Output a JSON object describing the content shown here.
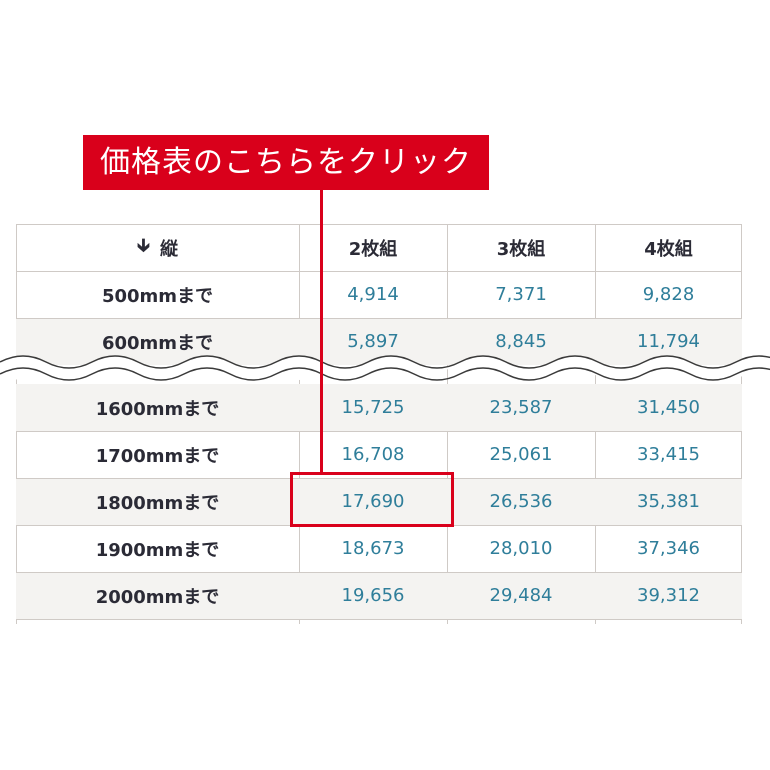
{
  "callout": {
    "label": "価格表のこちらをクリック"
  },
  "table": {
    "header": {
      "height_label": "縦",
      "col1": "2枚組",
      "col2": "3枚組",
      "col3": "4枚組"
    },
    "rows": [
      {
        "size": "500mmまで",
        "p2": "4,914",
        "p3": "7,371",
        "p4": "9,828"
      },
      {
        "size": "600mmまで",
        "p2": "5,897",
        "p3": "8,845",
        "p4": "11,794"
      },
      {
        "size": "1600mmまで",
        "p2": "15,725",
        "p3": "23,587",
        "p4": "31,450"
      },
      {
        "size": "1700mmまで",
        "p2": "16,708",
        "p3": "25,061",
        "p4": "33,415"
      },
      {
        "size": "1800mmまで",
        "p2": "17,690",
        "p3": "26,536",
        "p4": "35,381"
      },
      {
        "size": "1900mmまで",
        "p2": "18,673",
        "p3": "28,010",
        "p4": "37,346"
      },
      {
        "size": "2000mmまで",
        "p2": "19,656",
        "p3": "29,484",
        "p4": "39,312"
      }
    ]
  },
  "colors": {
    "accent": "#d9001b",
    "value_text": "#2f7e9a",
    "header_text": "#2b2b36",
    "alt_row": "#f4f3f1",
    "grid": "#cfcac6"
  },
  "icons": {
    "sort": "arrow-down-icon"
  }
}
